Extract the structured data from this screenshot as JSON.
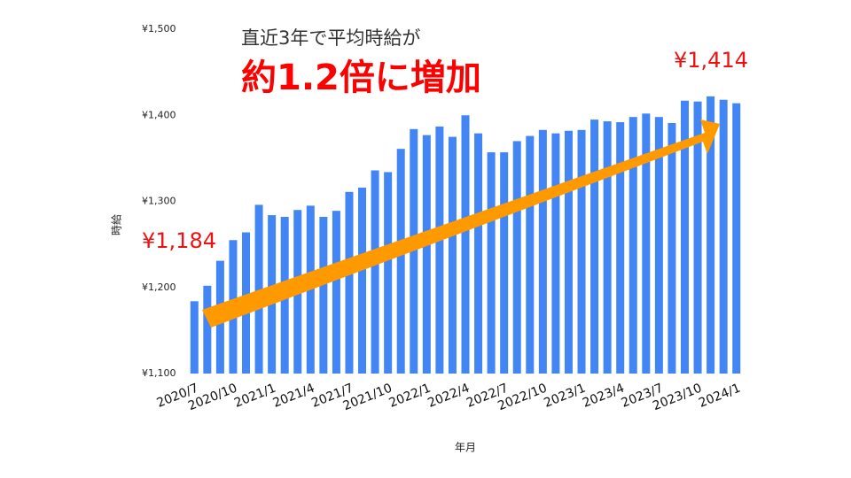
{
  "chart_data": {
    "type": "bar",
    "headline": "直近3年で平均時給が",
    "headline_emphasis": "約1.2倍に増加",
    "start_annotation": "¥1,184",
    "end_annotation": "¥1,414",
    "x_label": "年月",
    "y_label": "時給",
    "color": "#4285f4",
    "categories": [
      "2020/7",
      null,
      null,
      "2020/10",
      null,
      null,
      "2021/1",
      null,
      null,
      "2021/4",
      null,
      null,
      "2021/7",
      null,
      null,
      "2021/10",
      null,
      null,
      "2022/1",
      null,
      null,
      "2022/4",
      null,
      null,
      "2022/7",
      null,
      null,
      "2022/10",
      null,
      null,
      "2023/1",
      null,
      null,
      "2023/4",
      null,
      null,
      "2023/7",
      null,
      null,
      "2023/10",
      null,
      null,
      "2024/1"
    ],
    "values": [
      1184,
      1202,
      1231,
      1255,
      1264,
      1296,
      1284,
      1282,
      1290,
      1295,
      1282,
      1289,
      1311,
      1316,
      1336,
      1334,
      1361,
      1384,
      1377,
      1387,
      1375,
      1400,
      1379,
      1357,
      1357,
      1370,
      1376,
      1383,
      1379,
      1382,
      1383,
      1395,
      1393,
      1392,
      1398,
      1402,
      1398,
      1391,
      1417,
      1416,
      1422,
      1418,
      1414
    ],
    "ylim": [
      1100,
      1500
    ],
    "yticks": [
      {
        "value": 1100,
        "label": "¥1,100"
      },
      {
        "value": 1200,
        "label": "¥1,200"
      },
      {
        "value": 1300,
        "label": "¥1,300"
      },
      {
        "value": 1400,
        "label": "¥1,400"
      },
      {
        "value": 1500,
        "label": "¥1,500"
      }
    ]
  }
}
